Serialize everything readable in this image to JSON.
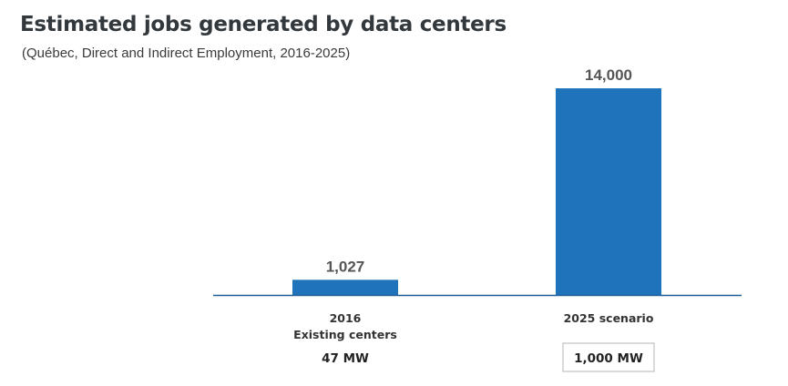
{
  "chart_data": {
    "type": "bar",
    "title": "Estimated jobs generated by data centers",
    "subtitle": "(Québec, Direct and Indirect Employment, 2016-2025)",
    "categories": [
      {
        "line1": "2016",
        "line2": "Existing centers",
        "capacity": "47 MW",
        "capacity_boxed": false
      },
      {
        "line1": "2025 scenario",
        "line2": "",
        "capacity": "1,000 MW",
        "capacity_boxed": true
      }
    ],
    "values": [
      1027,
      14000
    ],
    "value_labels": [
      "1,027",
      "14,000"
    ],
    "ylim": [
      0,
      14000
    ],
    "xlabel": "",
    "ylabel": "",
    "colors": {
      "bar": "#1f73ba",
      "axis": "#1f5f96",
      "box": "#b5b5b5"
    }
  }
}
